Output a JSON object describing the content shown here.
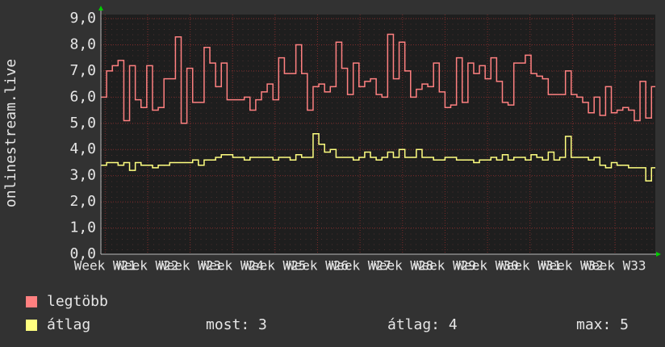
{
  "chart_data": {
    "type": "step-line",
    "ylabel": "onlinestream.live",
    "ylim": [
      0,
      9
    ],
    "yticks": [
      {
        "value": 0,
        "label": "0,0"
      },
      {
        "value": 1,
        "label": "1,0"
      },
      {
        "value": 2,
        "label": "2,0"
      },
      {
        "value": 3,
        "label": "3,0"
      },
      {
        "value": 4,
        "label": "4,0"
      },
      {
        "value": 5,
        "label": "5,0"
      },
      {
        "value": 6,
        "label": "6,0"
      },
      {
        "value": 7,
        "label": "7,0"
      },
      {
        "value": 8,
        "label": "8,0"
      },
      {
        "value": 9,
        "label": "9,0"
      }
    ],
    "xlim": [
      20.9,
      33.95
    ],
    "xticks": [
      {
        "value": 21,
        "label": "Week W21"
      },
      {
        "value": 22,
        "label": "Week W22"
      },
      {
        "value": 23,
        "label": "Week W23"
      },
      {
        "value": 24,
        "label": "Week W24"
      },
      {
        "value": 25,
        "label": "Week W25"
      },
      {
        "value": 26,
        "label": "Week W26"
      },
      {
        "value": 27,
        "label": "Week W27"
      },
      {
        "value": 28,
        "label": "Week W28"
      },
      {
        "value": 29,
        "label": "Week W29"
      },
      {
        "value": 30,
        "label": "Week W30"
      },
      {
        "value": 31,
        "label": "Week W31"
      },
      {
        "value": 32,
        "label": "Week W32"
      },
      {
        "value": 33,
        "label": "Week W33"
      }
    ],
    "grid": true,
    "x": [
      20.9,
      21.035,
      21.17,
      21.305,
      21.44,
      21.575,
      21.71,
      21.845,
      21.98,
      22.115,
      22.25,
      22.385,
      22.52,
      22.655,
      22.79,
      22.925,
      23.06,
      23.195,
      23.33,
      23.465,
      23.6,
      23.735,
      23.87,
      24.005,
      24.14,
      24.275,
      24.41,
      24.545,
      24.68,
      24.815,
      24.95,
      25.085,
      25.22,
      25.355,
      25.49,
      25.625,
      25.76,
      25.895,
      26.03,
      26.165,
      26.3,
      26.435,
      26.57,
      26.705,
      26.84,
      26.975,
      27.11,
      27.245,
      27.38,
      27.515,
      27.65,
      27.785,
      27.92,
      28.055,
      28.19,
      28.325,
      28.46,
      28.595,
      28.73,
      28.865,
      29.0,
      29.135,
      29.27,
      29.405,
      29.54,
      29.675,
      29.81,
      29.945,
      30.08,
      30.215,
      30.35,
      30.485,
      30.62,
      30.755,
      30.89,
      31.025,
      31.16,
      31.295,
      31.43,
      31.565,
      31.7,
      31.835,
      31.97,
      32.105,
      32.24,
      32.375,
      32.51,
      32.645,
      32.78,
      32.915,
      33.05,
      33.185,
      33.32,
      33.455,
      33.59,
      33.725,
      33.86
    ],
    "series": [
      {
        "name": "legtöbb",
        "color": "#ff8080",
        "values": [
          6.0,
          7.0,
          7.2,
          7.4,
          5.1,
          7.2,
          5.9,
          5.6,
          7.2,
          5.5,
          5.6,
          6.7,
          6.7,
          8.3,
          5.0,
          7.1,
          5.8,
          5.8,
          7.9,
          7.3,
          6.4,
          7.3,
          5.9,
          5.9,
          5.9,
          6.0,
          5.5,
          5.9,
          6.2,
          6.5,
          5.9,
          7.5,
          6.9,
          6.9,
          8.0,
          6.9,
          5.5,
          6.4,
          6.5,
          6.2,
          6.4,
          8.1,
          7.1,
          6.1,
          7.3,
          6.4,
          6.6,
          6.7,
          6.1,
          6.0,
          8.4,
          6.7,
          8.1,
          7.0,
          6.0,
          6.3,
          6.5,
          6.4,
          7.3,
          6.2,
          5.6,
          5.7,
          7.5,
          5.8,
          7.3,
          6.9,
          7.2,
          6.7,
          7.5,
          6.6,
          5.8,
          5.7,
          7.3,
          7.3,
          7.6,
          6.9,
          6.8,
          6.7,
          6.1,
          6.1,
          6.1,
          7.0,
          6.1,
          6.0,
          5.8,
          5.4,
          6.0,
          5.3,
          6.4,
          5.4,
          5.5,
          5.6,
          5.5,
          5.1,
          6.6,
          5.2,
          6.4
        ]
      },
      {
        "name": "átlag",
        "color": "#ffff80",
        "values": [
          3.4,
          3.5,
          3.5,
          3.4,
          3.5,
          3.2,
          3.5,
          3.4,
          3.4,
          3.3,
          3.4,
          3.4,
          3.5,
          3.5,
          3.5,
          3.5,
          3.6,
          3.4,
          3.6,
          3.6,
          3.7,
          3.8,
          3.8,
          3.7,
          3.7,
          3.6,
          3.7,
          3.7,
          3.7,
          3.7,
          3.6,
          3.7,
          3.7,
          3.6,
          3.8,
          3.7,
          3.7,
          4.6,
          4.2,
          3.9,
          4.0,
          3.7,
          3.7,
          3.7,
          3.6,
          3.7,
          3.9,
          3.7,
          3.6,
          3.7,
          3.9,
          3.7,
          4.0,
          3.7,
          3.7,
          4.0,
          3.7,
          3.7,
          3.6,
          3.6,
          3.7,
          3.7,
          3.6,
          3.6,
          3.6,
          3.5,
          3.6,
          3.6,
          3.7,
          3.6,
          3.8,
          3.6,
          3.7,
          3.7,
          3.6,
          3.8,
          3.7,
          3.6,
          3.9,
          3.6,
          3.7,
          4.5,
          3.7,
          3.7,
          3.7,
          3.6,
          3.7,
          3.4,
          3.3,
          3.5,
          3.4,
          3.4,
          3.3,
          3.3,
          3.3,
          2.8,
          3.3
        ]
      }
    ],
    "stats": [
      "most: 3",
      "átlag: 4",
      "max: 5"
    ]
  }
}
